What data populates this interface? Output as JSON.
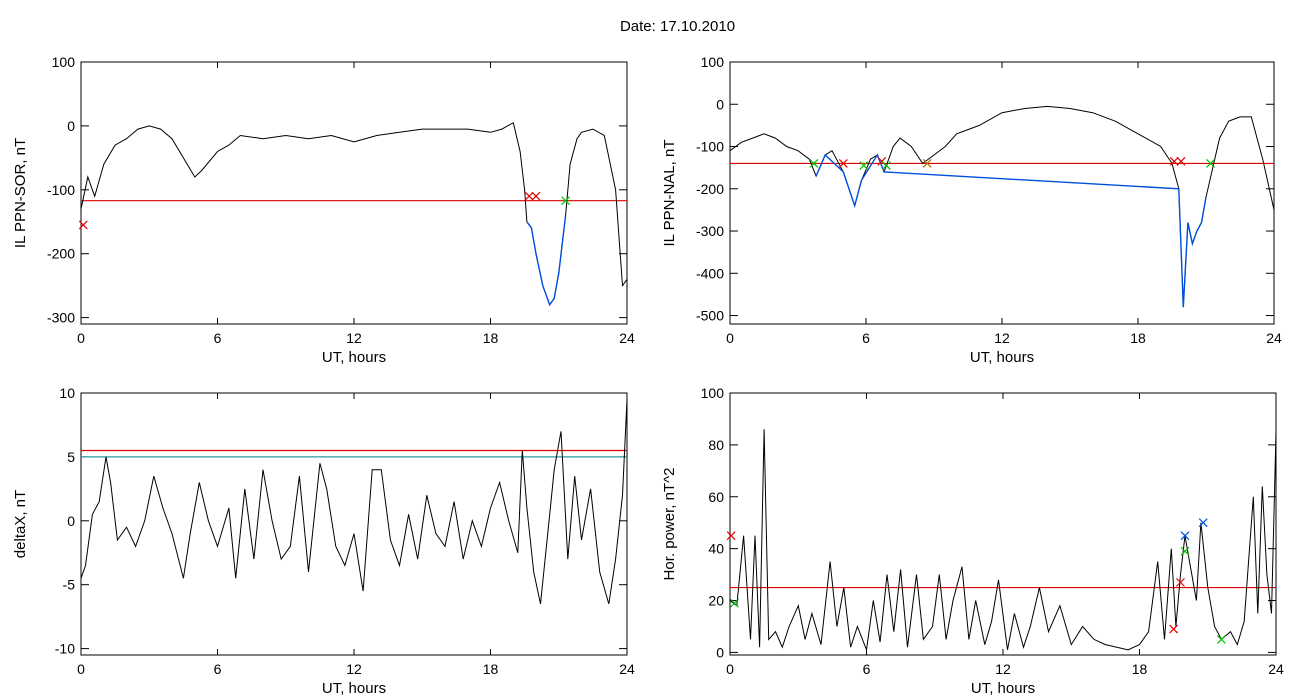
{
  "page": {
    "title": "Date:  17.10.2010"
  },
  "colors": {
    "trace": "#000000",
    "threshold": "#e00000",
    "highlight": "#0050dd",
    "teal": "#2a9aa8",
    "green": "#00c000"
  },
  "chart_data": [
    {
      "type": "line",
      "xlabel": "UT, hours",
      "ylabel": "IL PPN-SOR, nT",
      "xlim": [
        0,
        24
      ],
      "xticks": [
        0,
        6,
        12,
        18,
        24
      ],
      "ylim": [
        -310,
        100
      ],
      "yticks": [
        100,
        0,
        -100,
        -200,
        -300
      ],
      "x": [
        0,
        0.3,
        0.6,
        1.0,
        1.5,
        2.0,
        2.5,
        3.0,
        3.5,
        4.0,
        4.5,
        5.0,
        5.3,
        6.0,
        6.5,
        7.0,
        8.0,
        9.0,
        10.0,
        11.0,
        12.0,
        13.0,
        14.0,
        15.0,
        16.0,
        17.0,
        18.0,
        18.5,
        19.0,
        19.3,
        19.5,
        19.6,
        19.8,
        20.0,
        20.3,
        20.6,
        20.8,
        21.0,
        21.3,
        21.5,
        21.8,
        22.0,
        22.5,
        23.0,
        23.5,
        23.8,
        24.0
      ],
      "series": [
        {
          "values": [
            -130,
            -80,
            -110,
            -60,
            -30,
            -20,
            -5,
            0,
            -5,
            -20,
            -50,
            -80,
            -70,
            -40,
            -30,
            -15,
            -20,
            -15,
            -20,
            -15,
            -25,
            -15,
            -10,
            -5,
            -5,
            -5,
            -10,
            -5,
            5,
            -40,
            -100,
            -150,
            -160,
            -200,
            -250,
            -280,
            -270,
            -230,
            -140,
            -60,
            -20,
            -10,
            -5,
            -15,
            -100,
            -250,
            -240
          ]
        },
        {
          "name": "",
          "x": [
            19.6,
            19.8,
            20.0,
            20.3,
            20.6,
            20.8,
            21.0,
            21.3
          ],
          "values": [
            -150,
            -160,
            -200,
            -250,
            -280,
            -270,
            -230,
            -140
          ]
        }
      ],
      "threshold": -117,
      "markers": [
        {
          "x": 19.7,
          "y": -110,
          "color": "#e00000"
        },
        {
          "x": 20.0,
          "y": -110,
          "color": "#e00000"
        },
        {
          "x": 21.3,
          "y": -117,
          "color": "#00c000"
        },
        {
          "x": 0.1,
          "y": -155,
          "color": "#e00000"
        }
      ]
    },
    {
      "type": "line",
      "xlabel": "UT, hours",
      "ylabel": "IL PPN-NAL, nT",
      "xlim": [
        0,
        24
      ],
      "xticks": [
        0,
        6,
        12,
        18,
        24
      ],
      "ylim": [
        -520,
        100
      ],
      "yticks": [
        100,
        0,
        -100,
        -200,
        -300,
        -400,
        -500
      ],
      "x": [
        0,
        0.5,
        1.0,
        1.5,
        2.0,
        2.5,
        3.0,
        3.5,
        3.8,
        4.2,
        4.5,
        5.0,
        5.5,
        5.8,
        6.2,
        6.5,
        6.8,
        7.2,
        7.5,
        8.0,
        8.5,
        9.0,
        9.5,
        10.0,
        10.5,
        11.0,
        12.0,
        13.0,
        14.0,
        15.0,
        16.0,
        17.0,
        18.0,
        19.0,
        19.5,
        19.8,
        20.0,
        20.2,
        20.4,
        20.6,
        20.8,
        21.0,
        21.3,
        21.6,
        22.0,
        22.5,
        23.0,
        23.5,
        24.0
      ],
      "series": [
        {
          "values": [
            -110,
            -90,
            -80,
            -70,
            -80,
            -100,
            -110,
            -130,
            -170,
            -120,
            -110,
            -160,
            -240,
            -180,
            -130,
            -120,
            -160,
            -100,
            -80,
            -100,
            -140,
            -120,
            -100,
            -70,
            -60,
            -50,
            -20,
            -10,
            -5,
            -10,
            -20,
            -40,
            -70,
            -100,
            -140,
            -200,
            -480,
            -280,
            -330,
            -300,
            -280,
            -220,
            -150,
            -80,
            -40,
            -30,
            -30,
            -130,
            -250
          ]
        },
        {
          "name": "",
          "x": [
            3.8,
            4.2,
            5.0,
            5.5,
            5.8,
            6.5,
            6.8,
            19.8,
            20.0,
            20.2,
            20.4,
            20.6,
            20.8,
            21.0
          ],
          "values": [
            -170,
            -120,
            -160,
            -240,
            -180,
            -120,
            -160,
            -200,
            -480,
            -280,
            -330,
            -300,
            -280,
            -220
          ]
        }
      ],
      "threshold": -140,
      "markers": [
        {
          "x": 3.7,
          "y": -140,
          "color": "#00c000"
        },
        {
          "x": 5.0,
          "y": -140,
          "color": "#e00000"
        },
        {
          "x": 5.9,
          "y": -145,
          "color": "#00c000"
        },
        {
          "x": 6.7,
          "y": -135,
          "color": "#e00000"
        },
        {
          "x": 6.9,
          "y": -145,
          "color": "#00c000"
        },
        {
          "x": 8.7,
          "y": -140,
          "color": "#b07000"
        },
        {
          "x": 19.6,
          "y": -135,
          "color": "#e00000"
        },
        {
          "x": 19.9,
          "y": -135,
          "color": "#e00000"
        },
        {
          "x": 21.2,
          "y": -140,
          "color": "#00c000"
        }
      ]
    },
    {
      "type": "line",
      "xlabel": "UT, hours",
      "ylabel": "deltaX, nT",
      "xlim": [
        0,
        24
      ],
      "xticks": [
        0,
        6,
        12,
        18,
        24
      ],
      "ylim": [
        -10.5,
        10
      ],
      "yticks": [
        10,
        5,
        0,
        -5,
        -10
      ],
      "x": [
        0,
        0.2,
        0.5,
        0.8,
        1.1,
        1.3,
        1.6,
        2.0,
        2.4,
        2.8,
        3.2,
        3.6,
        4.0,
        4.5,
        4.8,
        5.2,
        5.6,
        6.0,
        6.5,
        6.8,
        7.2,
        7.6,
        8.0,
        8.4,
        8.8,
        9.2,
        9.6,
        10.0,
        10.5,
        10.8,
        11.2,
        11.6,
        12.0,
        12.4,
        12.8,
        13.2,
        13.6,
        14.0,
        14.4,
        14.8,
        15.2,
        15.6,
        16.0,
        16.4,
        16.8,
        17.2,
        17.6,
        18.0,
        18.4,
        18.8,
        19.2,
        19.4,
        19.6,
        19.9,
        20.2,
        20.6,
        20.8,
        21.1,
        21.4,
        21.7,
        22.0,
        22.4,
        22.8,
        23.2,
        23.5,
        23.8,
        24.0
      ],
      "series": [
        {
          "values": [
            -4.5,
            -3.5,
            0.5,
            1.5,
            5.0,
            3.0,
            -1.5,
            -0.5,
            -2.0,
            0.0,
            3.5,
            1.0,
            -1.0,
            -4.5,
            -1.0,
            3.0,
            0.0,
            -2.0,
            1.0,
            -4.5,
            2.5,
            -3.0,
            4.0,
            0.0,
            -3.0,
            -2.0,
            3.5,
            -4.0,
            4.5,
            2.5,
            -2.0,
            -3.5,
            -1.0,
            -5.5,
            4.0,
            4.0,
            -1.5,
            -3.5,
            0.5,
            -3.0,
            2.0,
            -1.0,
            -2.0,
            1.5,
            -3.0,
            0.0,
            -2.0,
            1.0,
            3.0,
            0.0,
            -2.5,
            5.5,
            1.0,
            -4.0,
            -6.5,
            0.5,
            4.0,
            7.0,
            -3.0,
            3.5,
            -1.5,
            2.5,
            -4.0,
            -6.5,
            -3.0,
            2.0,
            9.5
          ]
        }
      ],
      "threshold": 5.5,
      "threshold2": 5.0
    },
    {
      "type": "line",
      "xlabel": "UT, hours",
      "ylabel": "Hor. power, nT^2",
      "xlim": [
        0,
        24
      ],
      "xticks": [
        0,
        6,
        12,
        18,
        24
      ],
      "ylim": [
        -1,
        100
      ],
      "yticks": [
        100,
        80,
        60,
        40,
        20,
        0
      ],
      "x": [
        0,
        0.3,
        0.6,
        0.9,
        1.1,
        1.3,
        1.5,
        1.7,
        2.0,
        2.3,
        2.6,
        3.0,
        3.3,
        3.6,
        4.0,
        4.4,
        4.7,
        5.0,
        5.3,
        5.6,
        6.0,
        6.3,
        6.6,
        6.9,
        7.2,
        7.5,
        7.8,
        8.2,
        8.5,
        8.9,
        9.2,
        9.5,
        9.8,
        10.2,
        10.5,
        10.8,
        11.2,
        11.5,
        11.8,
        12.2,
        12.5,
        12.9,
        13.2,
        13.6,
        14.0,
        14.5,
        15.0,
        15.5,
        16.0,
        16.5,
        17.0,
        17.5,
        18.0,
        18.4,
        18.8,
        19.1,
        19.4,
        19.6,
        19.8,
        20.0,
        20.2,
        20.5,
        20.7,
        21.0,
        21.3,
        21.6,
        22.0,
        22.3,
        22.6,
        23.0,
        23.2,
        23.4,
        23.6,
        23.8,
        24.0
      ],
      "series": [
        {
          "values": [
            20,
            18,
            45,
            5,
            45,
            2,
            86,
            5,
            8,
            2,
            10,
            18,
            5,
            15,
            3,
            35,
            10,
            25,
            2,
            10,
            1,
            20,
            4,
            30,
            8,
            32,
            2,
            30,
            5,
            10,
            30,
            5,
            20,
            33,
            5,
            20,
            3,
            12,
            28,
            1,
            15,
            2,
            10,
            25,
            8,
            18,
            3,
            10,
            5,
            3,
            2,
            1,
            3,
            8,
            35,
            5,
            40,
            10,
            30,
            45,
            35,
            20,
            50,
            25,
            10,
            5,
            8,
            3,
            12,
            60,
            15,
            64,
            30,
            15,
            85
          ]
        }
      ],
      "threshold": 25,
      "markers": [
        {
          "x": 0.05,
          "y": 45,
          "color": "#e00000"
        },
        {
          "x": 0.2,
          "y": 19,
          "color": "#00c000"
        },
        {
          "x": 19.5,
          "y": 9,
          "color": "#e00000"
        },
        {
          "x": 19.8,
          "y": 27,
          "color": "#e00000"
        },
        {
          "x": 20.0,
          "y": 39,
          "color": "#00c000"
        },
        {
          "x": 20.0,
          "y": 45,
          "color": "#0050dd"
        },
        {
          "x": 20.8,
          "y": 50,
          "color": "#0050dd"
        },
        {
          "x": 21.6,
          "y": 5,
          "color": "#00c000"
        }
      ]
    }
  ]
}
